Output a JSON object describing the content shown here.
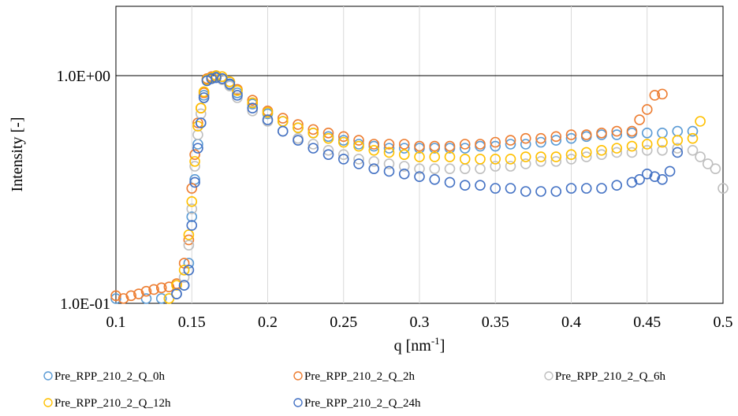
{
  "chart_data": {
    "type": "scatter",
    "title": "",
    "xlabel": "q [nm",
    "xlabel_sup": "-1",
    "xlabel_end": "]",
    "ylabel": "Intensity [-]",
    "xlim": [
      0.1,
      0.5
    ],
    "ylim": [
      0.1,
      2.0
    ],
    "y_scale": "log",
    "x_ticks": [
      "0.1",
      "0.15",
      "0.2",
      "0.25",
      "0.3",
      "0.35",
      "0.4",
      "0.45",
      "0.5"
    ],
    "y_ticks": [
      "1.0E-01",
      "1.0E+00"
    ],
    "grid": "vertical gridlines, horizontal line at 1.0E+00",
    "legend": "bottom",
    "series": [
      {
        "name": "Pre_RPP_210_2_Q_0h",
        "color": "#5B9BD5",
        "x": [
          0.1,
          0.12,
          0.13,
          0.14,
          0.145,
          0.148,
          0.15,
          0.152,
          0.154,
          0.156,
          0.158,
          0.16,
          0.163,
          0.166,
          0.17,
          0.175,
          0.18,
          0.19,
          0.2,
          0.21,
          0.22,
          0.23,
          0.24,
          0.25,
          0.26,
          0.27,
          0.28,
          0.29,
          0.3,
          0.31,
          0.32,
          0.33,
          0.34,
          0.35,
          0.36,
          0.37,
          0.38,
          0.39,
          0.4,
          0.41,
          0.42,
          0.43,
          0.44,
          0.45,
          0.46,
          0.47,
          0.48
        ],
        "y": [
          0.1,
          0.1,
          0.105,
          0.11,
          0.12,
          0.15,
          0.24,
          0.35,
          0.5,
          0.62,
          0.82,
          0.96,
          0.98,
          0.99,
          0.97,
          0.91,
          0.84,
          0.75,
          0.68,
          0.63,
          0.59,
          0.56,
          0.54,
          0.52,
          0.5,
          0.49,
          0.48,
          0.48,
          0.48,
          0.48,
          0.48,
          0.48,
          0.49,
          0.49,
          0.5,
          0.5,
          0.51,
          0.52,
          0.53,
          0.54,
          0.55,
          0.55,
          0.56,
          0.56,
          0.56,
          0.57,
          0.57
        ]
      },
      {
        "name": "Pre_RPP_210_2_Q_2h",
        "color": "#ED7D31",
        "x": [
          0.1,
          0.105,
          0.11,
          0.115,
          0.12,
          0.125,
          0.13,
          0.135,
          0.14,
          0.145,
          0.148,
          0.15,
          0.152,
          0.154,
          0.156,
          0.158,
          0.16,
          0.163,
          0.166,
          0.17,
          0.175,
          0.18,
          0.19,
          0.2,
          0.21,
          0.22,
          0.23,
          0.24,
          0.25,
          0.26,
          0.27,
          0.28,
          0.29,
          0.3,
          0.31,
          0.32,
          0.33,
          0.34,
          0.35,
          0.36,
          0.37,
          0.38,
          0.39,
          0.4,
          0.41,
          0.42,
          0.43,
          0.44,
          0.445,
          0.45,
          0.455,
          0.46
        ],
        "y": [
          0.108,
          0.105,
          0.108,
          0.11,
          0.113,
          0.115,
          0.117,
          0.118,
          0.122,
          0.15,
          0.19,
          0.32,
          0.45,
          0.62,
          0.72,
          0.84,
          0.97,
          0.99,
          1.0,
          0.99,
          0.94,
          0.87,
          0.78,
          0.7,
          0.65,
          0.61,
          0.58,
          0.56,
          0.54,
          0.52,
          0.5,
          0.5,
          0.5,
          0.49,
          0.49,
          0.49,
          0.5,
          0.5,
          0.51,
          0.52,
          0.53,
          0.53,
          0.54,
          0.55,
          0.55,
          0.56,
          0.57,
          0.57,
          0.64,
          0.71,
          0.82,
          0.83
        ]
      },
      {
        "name": "Pre_RPP_210_2_Q_6h",
        "color": "#BFBFBF",
        "x": [
          0.135,
          0.14,
          0.145,
          0.148,
          0.15,
          0.152,
          0.154,
          0.156,
          0.158,
          0.16,
          0.163,
          0.166,
          0.17,
          0.175,
          0.18,
          0.19,
          0.2,
          0.21,
          0.22,
          0.23,
          0.24,
          0.25,
          0.26,
          0.27,
          0.28,
          0.29,
          0.3,
          0.31,
          0.32,
          0.33,
          0.34,
          0.35,
          0.36,
          0.37,
          0.38,
          0.39,
          0.4,
          0.41,
          0.42,
          0.43,
          0.44,
          0.45,
          0.46,
          0.47,
          0.48,
          0.485,
          0.49,
          0.495,
          0.5
        ],
        "y": [
          0.1,
          0.11,
          0.13,
          0.18,
          0.26,
          0.4,
          0.55,
          0.68,
          0.8,
          0.95,
          0.97,
          0.98,
          0.96,
          0.9,
          0.8,
          0.7,
          0.63,
          0.57,
          0.53,
          0.5,
          0.47,
          0.45,
          0.43,
          0.42,
          0.41,
          0.4,
          0.39,
          0.39,
          0.39,
          0.39,
          0.39,
          0.4,
          0.4,
          0.41,
          0.42,
          0.42,
          0.43,
          0.44,
          0.45,
          0.46,
          0.46,
          0.47,
          0.47,
          0.48,
          0.47,
          0.44,
          0.41,
          0.39,
          0.32
        ]
      },
      {
        "name": "Pre_RPP_210_2_Q_12h",
        "color": "#FFC000",
        "x": [
          0.135,
          0.14,
          0.145,
          0.148,
          0.15,
          0.152,
          0.154,
          0.156,
          0.158,
          0.16,
          0.163,
          0.166,
          0.17,
          0.175,
          0.18,
          0.19,
          0.2,
          0.21,
          0.22,
          0.23,
          0.24,
          0.25,
          0.26,
          0.27,
          0.28,
          0.29,
          0.3,
          0.31,
          0.32,
          0.33,
          0.34,
          0.35,
          0.36,
          0.37,
          0.38,
          0.39,
          0.4,
          0.41,
          0.42,
          0.43,
          0.44,
          0.45,
          0.46,
          0.47,
          0.48,
          0.485
        ],
        "y": [
          0.105,
          0.12,
          0.14,
          0.2,
          0.28,
          0.42,
          0.6,
          0.72,
          0.85,
          0.96,
          0.98,
          1.0,
          0.99,
          0.94,
          0.86,
          0.76,
          0.69,
          0.63,
          0.59,
          0.56,
          0.53,
          0.51,
          0.49,
          0.47,
          0.46,
          0.45,
          0.44,
          0.44,
          0.44,
          0.43,
          0.43,
          0.43,
          0.43,
          0.44,
          0.44,
          0.44,
          0.45,
          0.46,
          0.47,
          0.48,
          0.49,
          0.5,
          0.51,
          0.52,
          0.53,
          0.63
        ]
      },
      {
        "name": "Pre_RPP_210_2_Q_24h",
        "color": "#4472C4",
        "x": [
          0.14,
          0.145,
          0.148,
          0.15,
          0.152,
          0.154,
          0.156,
          0.158,
          0.16,
          0.163,
          0.166,
          0.17,
          0.175,
          0.18,
          0.19,
          0.2,
          0.21,
          0.22,
          0.23,
          0.24,
          0.25,
          0.26,
          0.27,
          0.28,
          0.29,
          0.3,
          0.31,
          0.32,
          0.33,
          0.34,
          0.35,
          0.36,
          0.37,
          0.38,
          0.39,
          0.4,
          0.41,
          0.42,
          0.43,
          0.44,
          0.445,
          0.45,
          0.455,
          0.46,
          0.465,
          0.47
        ],
        "y": [
          0.11,
          0.12,
          0.14,
          0.22,
          0.34,
          0.48,
          0.62,
          0.8,
          0.95,
          0.97,
          0.98,
          0.97,
          0.92,
          0.82,
          0.72,
          0.64,
          0.57,
          0.52,
          0.48,
          0.45,
          0.43,
          0.41,
          0.39,
          0.38,
          0.37,
          0.36,
          0.35,
          0.34,
          0.33,
          0.33,
          0.32,
          0.32,
          0.31,
          0.31,
          0.31,
          0.32,
          0.32,
          0.32,
          0.33,
          0.34,
          0.35,
          0.37,
          0.36,
          0.35,
          0.38,
          0.46
        ]
      }
    ]
  }
}
